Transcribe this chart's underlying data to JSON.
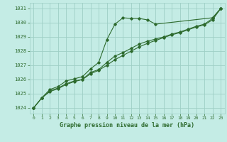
{
  "title": "Graphe pression niveau de la mer (hPa)",
  "bg_color": "#c4ece5",
  "grid_color": "#9ecfc5",
  "line_color": "#2d6a2d",
  "xlim": [
    -0.5,
    23.5
  ],
  "ylim": [
    1023.6,
    1031.4
  ],
  "yticks": [
    1024,
    1025,
    1026,
    1027,
    1028,
    1029,
    1030,
    1031
  ],
  "xticks": [
    0,
    1,
    2,
    3,
    4,
    5,
    6,
    7,
    8,
    9,
    10,
    11,
    12,
    13,
    14,
    15,
    16,
    17,
    18,
    19,
    20,
    21,
    22,
    23
  ],
  "series1_x": [
    0,
    1,
    2,
    3,
    4,
    5,
    6,
    7,
    8,
    9,
    10,
    11,
    12,
    13,
    14,
    15,
    22,
    23
  ],
  "series1_y": [
    1024.0,
    1024.7,
    1025.3,
    1025.5,
    1025.9,
    1026.05,
    1026.2,
    1026.75,
    1027.2,
    1028.8,
    1029.9,
    1030.35,
    1030.3,
    1030.3,
    1030.2,
    1029.9,
    1030.35,
    1031.0
  ],
  "series2_x": [
    0,
    1,
    2,
    3,
    4,
    5,
    6,
    7,
    8,
    9,
    10,
    11,
    12,
    13,
    14,
    15,
    16,
    17,
    18,
    19,
    20,
    21,
    22,
    23
  ],
  "series2_y": [
    1024.0,
    1024.7,
    1025.2,
    1025.4,
    1025.7,
    1025.9,
    1026.0,
    1026.5,
    1026.7,
    1027.2,
    1027.65,
    1027.9,
    1028.2,
    1028.5,
    1028.7,
    1028.85,
    1029.0,
    1029.2,
    1029.35,
    1029.55,
    1029.75,
    1029.9,
    1030.3,
    1031.0
  ],
  "series3_x": [
    0,
    1,
    2,
    3,
    4,
    5,
    6,
    7,
    8,
    9,
    10,
    11,
    12,
    13,
    14,
    15,
    16,
    17,
    18,
    19,
    20,
    21,
    22,
    23
  ],
  "series3_y": [
    1024.0,
    1024.7,
    1025.15,
    1025.35,
    1025.65,
    1025.85,
    1026.0,
    1026.4,
    1026.65,
    1027.0,
    1027.4,
    1027.7,
    1028.0,
    1028.3,
    1028.55,
    1028.75,
    1028.95,
    1029.15,
    1029.3,
    1029.5,
    1029.7,
    1029.85,
    1030.2,
    1031.0
  ],
  "ylabel_fontsize": 5,
  "xlabel_fontsize": 6,
  "tick_fontsize": 4.5,
  "title_fontsize": 6
}
